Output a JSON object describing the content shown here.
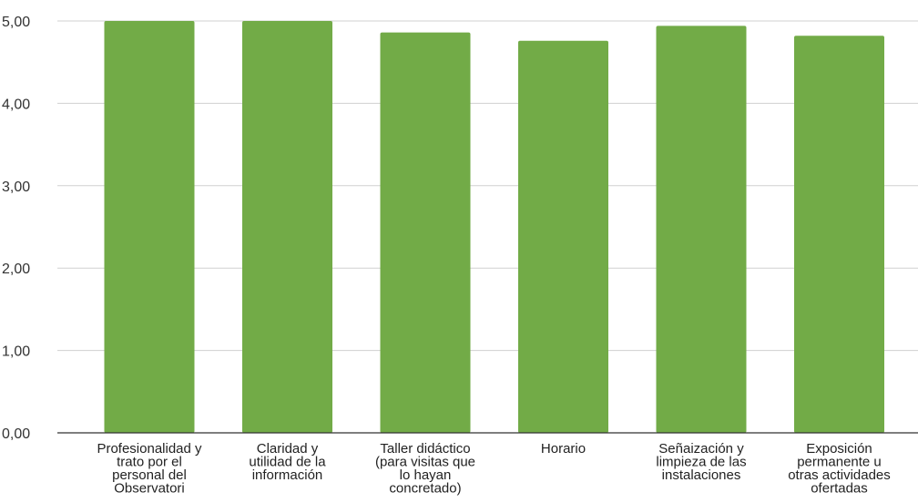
{
  "chart_data": {
    "type": "bar",
    "categories": [
      [
        "Profesionalidad y",
        "trato por el",
        "personal del",
        "Observatori"
      ],
      [
        "Claridad y",
        "utilidad de la",
        "información"
      ],
      [
        "Taller didáctico",
        "(para visitas que",
        "lo hayan",
        "concretado)"
      ],
      [
        "Horario"
      ],
      [
        "Señaización y",
        "limpieza de las",
        "instalaciones"
      ],
      [
        "Exposición",
        "permanente u",
        "otras actividades",
        "ofertadas"
      ]
    ],
    "values": [
      5.0,
      5.0,
      4.86,
      4.76,
      4.94,
      4.82
    ],
    "ylim": [
      0,
      5
    ],
    "yticks": [
      "0,00",
      "1,00",
      "2,00",
      "3,00",
      "4,00",
      "5,00"
    ],
    "ytick_values": [
      0,
      1,
      2,
      3,
      4,
      5
    ],
    "title": "",
    "xlabel": "",
    "ylabel": "",
    "grid": true,
    "legend": "none",
    "bar_color": "#72ab47",
    "axis_color": "#333333",
    "grid_color": "#d0d0d0"
  }
}
